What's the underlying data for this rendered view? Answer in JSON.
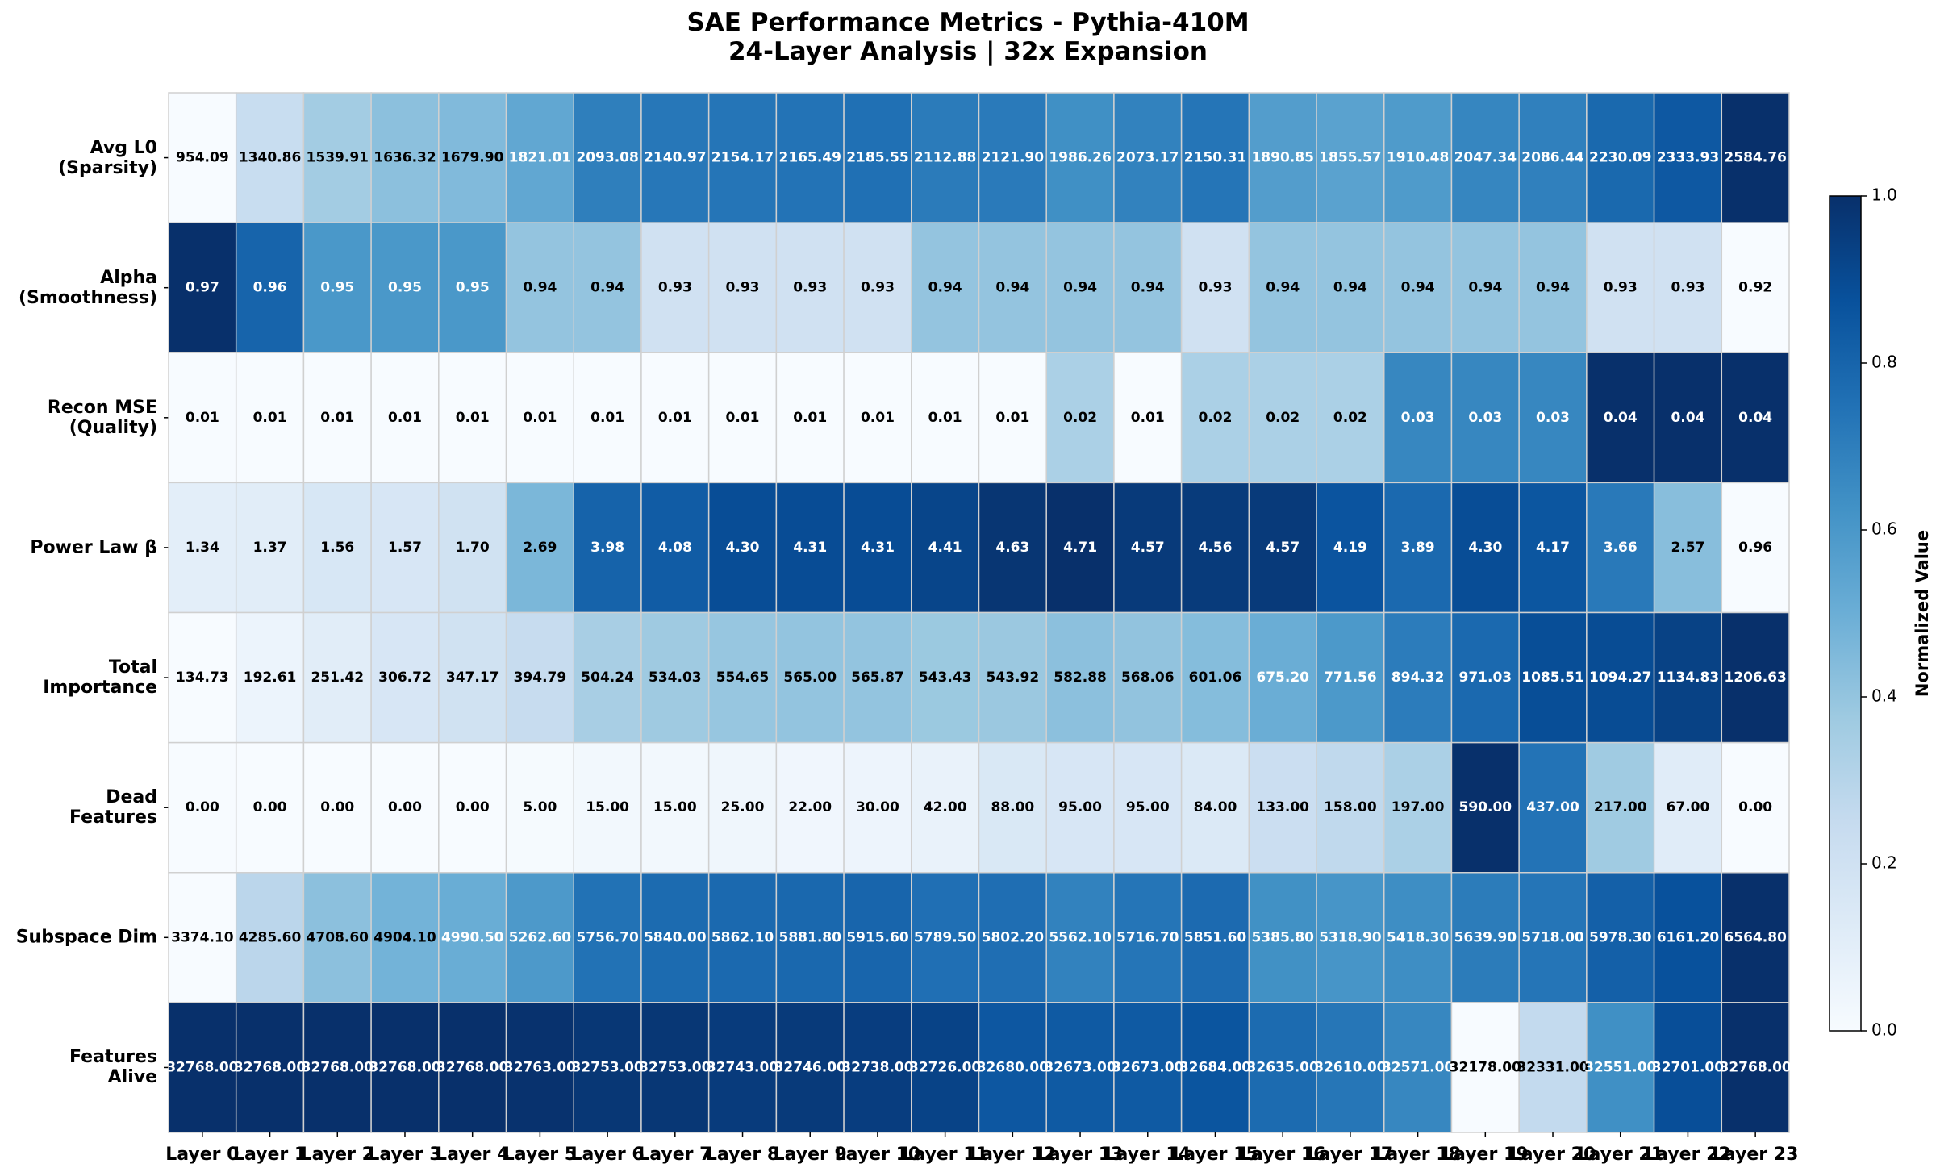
{
  "chart_data": {
    "type": "heatmap",
    "title": "SAE Performance Metrics - Pythia-410M",
    "subtitle": "24-Layer Analysis | 32x Expansion",
    "colormap": "Blues",
    "normalization": "row",
    "colorbar_label": "Normalized Value",
    "colorbar_lim": [
      0,
      1
    ],
    "colorbar_ticks": [
      {
        "value": 0,
        "label": "0.0"
      },
      {
        "value": 0.2,
        "label": "0.2"
      },
      {
        "value": 0.4,
        "label": "0.4"
      },
      {
        "value": 0.6,
        "label": "0.6"
      },
      {
        "value": 0.8,
        "label": "0.8"
      },
      {
        "value": 1,
        "label": "1.0"
      }
    ],
    "categories": [
      "Layer 0",
      "Layer 1",
      "Layer 2",
      "Layer 3",
      "Layer 4",
      "Layer 5",
      "Layer 6",
      "Layer 7",
      "Layer 8",
      "Layer 9",
      "Layer 10",
      "Layer 11",
      "Layer 12",
      "Layer 13",
      "Layer 14",
      "Layer 15",
      "Layer 16",
      "Layer 17",
      "Layer 18",
      "Layer 19",
      "Layer 20",
      "Layer 21",
      "Layer 22",
      "Layer 23"
    ],
    "series": [
      {
        "name": "Avg L0\n(Sparsity)",
        "values": [
          954.09,
          1340.86,
          1539.91,
          1636.32,
          1679.9,
          1821.01,
          2093.08,
          2140.97,
          2154.17,
          2165.49,
          2185.55,
          2112.88,
          2121.9,
          1986.26,
          2073.17,
          2150.31,
          1890.85,
          1855.57,
          1910.48,
          2047.34,
          2086.44,
          2230.09,
          2333.93,
          2584.76
        ],
        "value_labels": [
          "954.09",
          "1340.86",
          "1539.91",
          "1636.32",
          "1679.90",
          "1821.01",
          "2093.08",
          "2140.97",
          "2154.17",
          "2165.49",
          "2185.55",
          "2112.88",
          "2121.90",
          "1986.26",
          "2073.17",
          "2150.31",
          "1890.85",
          "1855.57",
          "1910.48",
          "2047.34",
          "2086.44",
          "2230.09",
          "2333.93",
          "2584.76"
        ]
      },
      {
        "name": "Alpha\n(Smoothness)",
        "values": [
          0.97,
          0.96,
          0.95,
          0.95,
          0.95,
          0.94,
          0.94,
          0.93,
          0.93,
          0.93,
          0.93,
          0.94,
          0.94,
          0.94,
          0.94,
          0.93,
          0.94,
          0.94,
          0.94,
          0.94,
          0.94,
          0.93,
          0.93,
          0.92
        ],
        "value_labels": [
          "0.97",
          "0.96",
          "0.95",
          "0.95",
          "0.95",
          "0.94",
          "0.94",
          "0.93",
          "0.93",
          "0.93",
          "0.93",
          "0.94",
          "0.94",
          "0.94",
          "0.94",
          "0.93",
          "0.94",
          "0.94",
          "0.94",
          "0.94",
          "0.94",
          "0.93",
          "0.93",
          "0.92"
        ]
      },
      {
        "name": "Recon MSE\n(Quality)",
        "values": [
          0.01,
          0.01,
          0.01,
          0.01,
          0.01,
          0.01,
          0.01,
          0.01,
          0.01,
          0.01,
          0.01,
          0.01,
          0.01,
          0.02,
          0.01,
          0.02,
          0.02,
          0.02,
          0.03,
          0.03,
          0.03,
          0.04,
          0.04,
          0.04
        ],
        "value_labels": [
          "0.01",
          "0.01",
          "0.01",
          "0.01",
          "0.01",
          "0.01",
          "0.01",
          "0.01",
          "0.01",
          "0.01",
          "0.01",
          "0.01",
          "0.01",
          "0.02",
          "0.01",
          "0.02",
          "0.02",
          "0.02",
          "0.03",
          "0.03",
          "0.03",
          "0.04",
          "0.04",
          "0.04"
        ]
      },
      {
        "name": "Power Law β",
        "values": [
          1.34,
          1.37,
          1.56,
          1.57,
          1.7,
          2.69,
          3.98,
          4.08,
          4.3,
          4.31,
          4.31,
          4.41,
          4.63,
          4.71,
          4.57,
          4.56,
          4.57,
          4.19,
          3.89,
          4.3,
          4.17,
          3.66,
          2.57,
          0.96
        ],
        "value_labels": [
          "1.34",
          "1.37",
          "1.56",
          "1.57",
          "1.70",
          "2.69",
          "3.98",
          "4.08",
          "4.30",
          "4.31",
          "4.31",
          "4.41",
          "4.63",
          "4.71",
          "4.57",
          "4.56",
          "4.57",
          "4.19",
          "3.89",
          "4.30",
          "4.17",
          "3.66",
          "2.57",
          "0.96"
        ]
      },
      {
        "name": "Total\nImportance",
        "values": [
          134.73,
          192.61,
          251.42,
          306.72,
          347.17,
          394.79,
          504.24,
          534.03,
          554.65,
          565,
          565.87,
          543.43,
          543.92,
          582.88,
          568.06,
          601.06,
          675.2,
          771.56,
          894.32,
          971.03,
          1085.51,
          1094.27,
          1134.83,
          1206.63
        ],
        "value_labels": [
          "134.73",
          "192.61",
          "251.42",
          "306.72",
          "347.17",
          "394.79",
          "504.24",
          "534.03",
          "554.65",
          "565.00",
          "565.87",
          "543.43",
          "543.92",
          "582.88",
          "568.06",
          "601.06",
          "675.20",
          "771.56",
          "894.32",
          "971.03",
          "1085.51",
          "1094.27",
          "1134.83",
          "1206.63"
        ]
      },
      {
        "name": "Dead\nFeatures",
        "values": [
          0,
          0,
          0,
          0,
          0,
          5,
          15,
          15,
          25,
          22,
          30,
          42,
          88,
          95,
          95,
          84,
          133,
          158,
          197,
          590,
          437,
          217,
          67,
          0
        ],
        "value_labels": [
          "0.00",
          "0.00",
          "0.00",
          "0.00",
          "0.00",
          "5.00",
          "15.00",
          "15.00",
          "25.00",
          "22.00",
          "30.00",
          "42.00",
          "88.00",
          "95.00",
          "95.00",
          "84.00",
          "133.00",
          "158.00",
          "197.00",
          "590.00",
          "437.00",
          "217.00",
          "67.00",
          "0.00"
        ]
      },
      {
        "name": "Subspace Dim",
        "values": [
          3374.1,
          4285.6,
          4708.6,
          4904.1,
          4990.5,
          5262.6,
          5756.7,
          5840,
          5862.1,
          5881.8,
          5915.6,
          5789.5,
          5802.2,
          5562.1,
          5716.7,
          5851.6,
          5385.8,
          5318.9,
          5418.3,
          5639.9,
          5718,
          5978.3,
          6161.2,
          6564.8
        ],
        "value_labels": [
          "3374.10",
          "4285.60",
          "4708.60",
          "4904.10",
          "4990.50",
          "5262.60",
          "5756.70",
          "5840.00",
          "5862.10",
          "5881.80",
          "5915.60",
          "5789.50",
          "5802.20",
          "5562.10",
          "5716.70",
          "5851.60",
          "5385.80",
          "5318.90",
          "5418.30",
          "5639.90",
          "5718.00",
          "5978.30",
          "6161.20",
          "6564.80"
        ]
      },
      {
        "name": "Features\nAlive",
        "values": [
          32768,
          32768,
          32768,
          32768,
          32768,
          32763,
          32753,
          32753,
          32743,
          32746,
          32738,
          32726,
          32680,
          32673,
          32673,
          32684,
          32635,
          32610,
          32571,
          32178,
          32331,
          32551,
          32701,
          32768
        ],
        "value_labels": [
          "32768.00",
          "32768.00",
          "32768.00",
          "32768.00",
          "32768.00",
          "32763.00",
          "32753.00",
          "32753.00",
          "32743.00",
          "32746.00",
          "32738.00",
          "32726.00",
          "32680.00",
          "32673.00",
          "32673.00",
          "32684.00",
          "32635.00",
          "32610.00",
          "32571.00",
          "32178.00",
          "32331.00",
          "32551.00",
          "32701.00",
          "32768.00"
        ]
      }
    ]
  }
}
